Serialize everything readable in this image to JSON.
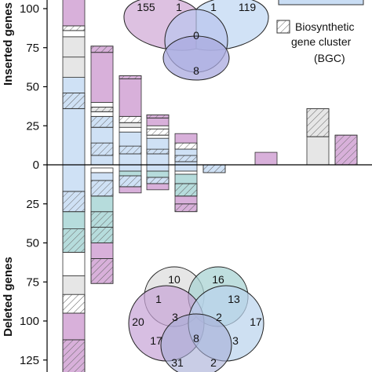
{
  "chart_data": {
    "type": "bar",
    "ylabel_top": "Inserted genes",
    "ylabel_bottom": "Deleted genes",
    "y_ticks": [
      {
        "label": "100",
        "value": 100
      },
      {
        "label": "75",
        "value": 75
      },
      {
        "label": "50",
        "value": 50
      },
      {
        "label": "25",
        "value": 25
      },
      {
        "label": "0",
        "value": 0
      },
      {
        "label": "25",
        "value": -25
      },
      {
        "label": "50",
        "value": -50
      },
      {
        "label": "75",
        "value": -75
      },
      {
        "label": "100",
        "value": -100
      },
      {
        "label": "125",
        "value": -125
      }
    ],
    "ylim": [
      -133,
      106
    ],
    "legend": [
      {
        "label_lines": [
          "Biosynthetic",
          "gene cluster",
          "(BGC)"
        ],
        "pattern": "hatch"
      }
    ],
    "colors": {
      "purple": "#d8b0da",
      "blue": "#cfe1f5",
      "grey": "#e6e6e6",
      "teal": "#b6dcdc",
      "white": "#ffffff",
      "venn_purple": "#d7b6dc",
      "venn_blue": "#c9ddf4",
      "venn_darkblue": "#a9a9df",
      "venn_grey": "#e0e0e0",
      "venn_teal": "#a9d3d3",
      "venn_lightblue": "#b9d3ec",
      "venn_mauve": "#c6a3d6"
    },
    "bars": [
      {
        "id": "b1",
        "segments": [
          {
            "from": -133,
            "to": -112,
            "color": "purple",
            "hatch": true
          },
          {
            "from": -112,
            "to": -95,
            "color": "purple",
            "hatch": false
          },
          {
            "from": -95,
            "to": -83,
            "color": "white",
            "hatch": true
          },
          {
            "from": -83,
            "to": -71,
            "color": "grey",
            "hatch": false
          },
          {
            "from": -71,
            "to": -56,
            "color": "white",
            "hatch": false
          },
          {
            "from": -56,
            "to": -41,
            "color": "teal",
            "hatch": true
          },
          {
            "from": -41,
            "to": -30,
            "color": "teal",
            "hatch": false
          },
          {
            "from": -30,
            "to": -17,
            "color": "blue",
            "hatch": true
          },
          {
            "from": -17,
            "to": 0,
            "color": "blue",
            "hatch": false
          },
          {
            "from": 0,
            "to": 36,
            "color": "blue",
            "hatch": false
          },
          {
            "from": 36,
            "to": 46,
            "color": "blue",
            "hatch": true
          },
          {
            "from": 46,
            "to": 56,
            "color": "blue",
            "hatch": false
          },
          {
            "from": 56,
            "to": 69,
            "color": "grey",
            "hatch": false
          },
          {
            "from": 69,
            "to": 82,
            "color": "grey",
            "hatch": false
          },
          {
            "from": 82,
            "to": 86,
            "color": "white",
            "hatch": false
          },
          {
            "from": 86,
            "to": 89,
            "color": "white",
            "hatch": true
          },
          {
            "from": 89,
            "to": 106,
            "color": "purple",
            "hatch": false
          }
        ]
      },
      {
        "id": "b2",
        "segments": [
          {
            "from": -76,
            "to": -60,
            "color": "purple",
            "hatch": true
          },
          {
            "from": -60,
            "to": -50,
            "color": "purple",
            "hatch": false
          },
          {
            "from": -50,
            "to": -40,
            "color": "teal",
            "hatch": true
          },
          {
            "from": -40,
            "to": -30,
            "color": "teal",
            "hatch": true
          },
          {
            "from": -30,
            "to": -20,
            "color": "teal",
            "hatch": false
          },
          {
            "from": -20,
            "to": -10,
            "color": "blue",
            "hatch": true
          },
          {
            "from": -10,
            "to": -5,
            "color": "blue",
            "hatch": false
          },
          {
            "from": -5,
            "to": -2,
            "color": "white",
            "hatch": false
          },
          {
            "from": 0,
            "to": 6,
            "color": "blue",
            "hatch": false
          },
          {
            "from": 6,
            "to": 14,
            "color": "blue",
            "hatch": true
          },
          {
            "from": 14,
            "to": 24,
            "color": "blue",
            "hatch": false
          },
          {
            "from": 24,
            "to": 31,
            "color": "blue",
            "hatch": true
          },
          {
            "from": 31,
            "to": 34,
            "color": "white",
            "hatch": false
          },
          {
            "from": 34,
            "to": 37,
            "color": "grey",
            "hatch": true
          },
          {
            "from": 37,
            "to": 40,
            "color": "white",
            "hatch": false
          },
          {
            "from": 40,
            "to": 72,
            "color": "purple",
            "hatch": false
          },
          {
            "from": 72,
            "to": 76,
            "color": "purple",
            "hatch": true
          }
        ]
      },
      {
        "id": "b3",
        "segments": [
          {
            "from": -18,
            "to": -14,
            "color": "purple",
            "hatch": false
          },
          {
            "from": -14,
            "to": -7,
            "color": "blue",
            "hatch": true
          },
          {
            "from": -7,
            "to": -4,
            "color": "teal",
            "hatch": false
          },
          {
            "from": -4,
            "to": 0,
            "color": "blue",
            "hatch": false
          },
          {
            "from": 0,
            "to": 7,
            "color": "blue",
            "hatch": false
          },
          {
            "from": 7,
            "to": 12,
            "color": "blue",
            "hatch": true
          },
          {
            "from": 12,
            "to": 21,
            "color": "blue",
            "hatch": false
          },
          {
            "from": 21,
            "to": 24,
            "color": "white",
            "hatch": false
          },
          {
            "from": 24,
            "to": 27,
            "color": "grey",
            "hatch": false
          },
          {
            "from": 27,
            "to": 31,
            "color": "white",
            "hatch": true
          },
          {
            "from": 31,
            "to": 55,
            "color": "purple",
            "hatch": false
          },
          {
            "from": 55,
            "to": 57,
            "color": "purple",
            "hatch": true
          }
        ]
      },
      {
        "id": "b4",
        "segments": [
          {
            "from": -16,
            "to": -12,
            "color": "purple",
            "hatch": false
          },
          {
            "from": -12,
            "to": -8,
            "color": "blue",
            "hatch": true
          },
          {
            "from": -8,
            "to": -4,
            "color": "teal",
            "hatch": false
          },
          {
            "from": -4,
            "to": 0,
            "color": "blue",
            "hatch": false
          },
          {
            "from": 0,
            "to": 7,
            "color": "blue",
            "hatch": false
          },
          {
            "from": 7,
            "to": 10,
            "color": "blue",
            "hatch": true
          },
          {
            "from": 10,
            "to": 17,
            "color": "blue",
            "hatch": false
          },
          {
            "from": 17,
            "to": 19,
            "color": "white",
            "hatch": false
          },
          {
            "from": 19,
            "to": 23,
            "color": "white",
            "hatch": true
          },
          {
            "from": 23,
            "to": 25,
            "color": "white",
            "hatch": false
          },
          {
            "from": 25,
            "to": 30,
            "color": "purple",
            "hatch": false
          },
          {
            "from": 30,
            "to": 32,
            "color": "purple",
            "hatch": true
          }
        ]
      },
      {
        "id": "b5",
        "segments": [
          {
            "from": -30,
            "to": -25,
            "color": "purple",
            "hatch": true
          },
          {
            "from": -25,
            "to": -20,
            "color": "purple",
            "hatch": false
          },
          {
            "from": -20,
            "to": -12,
            "color": "teal",
            "hatch": true
          },
          {
            "from": -12,
            "to": -6,
            "color": "teal",
            "hatch": false
          },
          {
            "from": -6,
            "to": -4,
            "color": "white",
            "hatch": false
          },
          {
            "from": -4,
            "to": 0,
            "color": "blue",
            "hatch": false
          },
          {
            "from": 0,
            "to": 2,
            "color": "blue",
            "hatch": false
          },
          {
            "from": 2,
            "to": 6,
            "color": "blue",
            "hatch": true
          },
          {
            "from": 6,
            "to": 10,
            "color": "blue",
            "hatch": false
          },
          {
            "from": 10,
            "to": 14,
            "color": "white",
            "hatch": true
          },
          {
            "from": 14,
            "to": 20,
            "color": "purple",
            "hatch": false
          }
        ]
      },
      {
        "id": "b6",
        "segments": [
          {
            "from": -5,
            "to": 0,
            "color": "blue",
            "hatch": true
          }
        ]
      },
      {
        "id": "b7",
        "segments": [
          {
            "from": 0,
            "to": 8,
            "color": "purple",
            "hatch": false
          }
        ]
      },
      {
        "id": "b8",
        "segments": [
          {
            "from": 0,
            "to": 18,
            "color": "grey",
            "hatch": false
          },
          {
            "from": 18,
            "to": 36,
            "color": "grey",
            "hatch": true
          }
        ]
      },
      {
        "id": "b9",
        "segments": [
          {
            "from": 0,
            "to": 19,
            "color": "purple",
            "hatch": true
          }
        ]
      }
    ],
    "venn_top": {
      "labels": [
        "155",
        "1",
        "1",
        "119",
        "0",
        "8"
      ]
    },
    "venn_bottom": {
      "labels": [
        "10",
        "16",
        "1",
        "13",
        "20",
        "3",
        "2",
        "17",
        "17",
        "8",
        "3",
        "31",
        "2"
      ]
    }
  }
}
